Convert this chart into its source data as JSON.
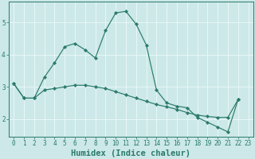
{
  "x": [
    0,
    1,
    2,
    3,
    4,
    5,
    6,
    7,
    8,
    9,
    10,
    11,
    12,
    13,
    14,
    15,
    16,
    17,
    18,
    19,
    20,
    21,
    22,
    23
  ],
  "line1": [
    3.1,
    2.65,
    2.65,
    3.3,
    3.75,
    4.25,
    4.35,
    4.15,
    3.9,
    4.75,
    5.3,
    5.35,
    4.95,
    4.3,
    2.9,
    2.5,
    2.4,
    2.35,
    2.05,
    1.9,
    1.75,
    1.6,
    2.6,
    null
  ],
  "line2": [
    3.1,
    2.65,
    2.65,
    2.9,
    2.95,
    3.0,
    3.05,
    3.05,
    3.0,
    2.95,
    2.85,
    2.75,
    2.65,
    2.55,
    2.45,
    2.38,
    2.3,
    2.2,
    2.12,
    2.08,
    2.05,
    2.05,
    2.6,
    null
  ],
  "bg_color": "#cce8e8",
  "line_color": "#2a7a6a",
  "grid_color": "#e8f8f8",
  "xlabel": "Humidex (Indice chaleur)",
  "xlim": [
    -0.5,
    23.5
  ],
  "ylim": [
    1.45,
    5.65
  ],
  "yticks": [
    2,
    3,
    4,
    5
  ],
  "xtick_labels": [
    "0",
    "1",
    "2",
    "3",
    "4",
    "5",
    "6",
    "7",
    "8",
    "9",
    "10",
    "11",
    "12",
    "13",
    "14",
    "15",
    "16",
    "17",
    "18",
    "19",
    "20",
    "21",
    "22",
    "23"
  ],
  "tick_fontsize": 5.5,
  "xlabel_fontsize": 7.5
}
